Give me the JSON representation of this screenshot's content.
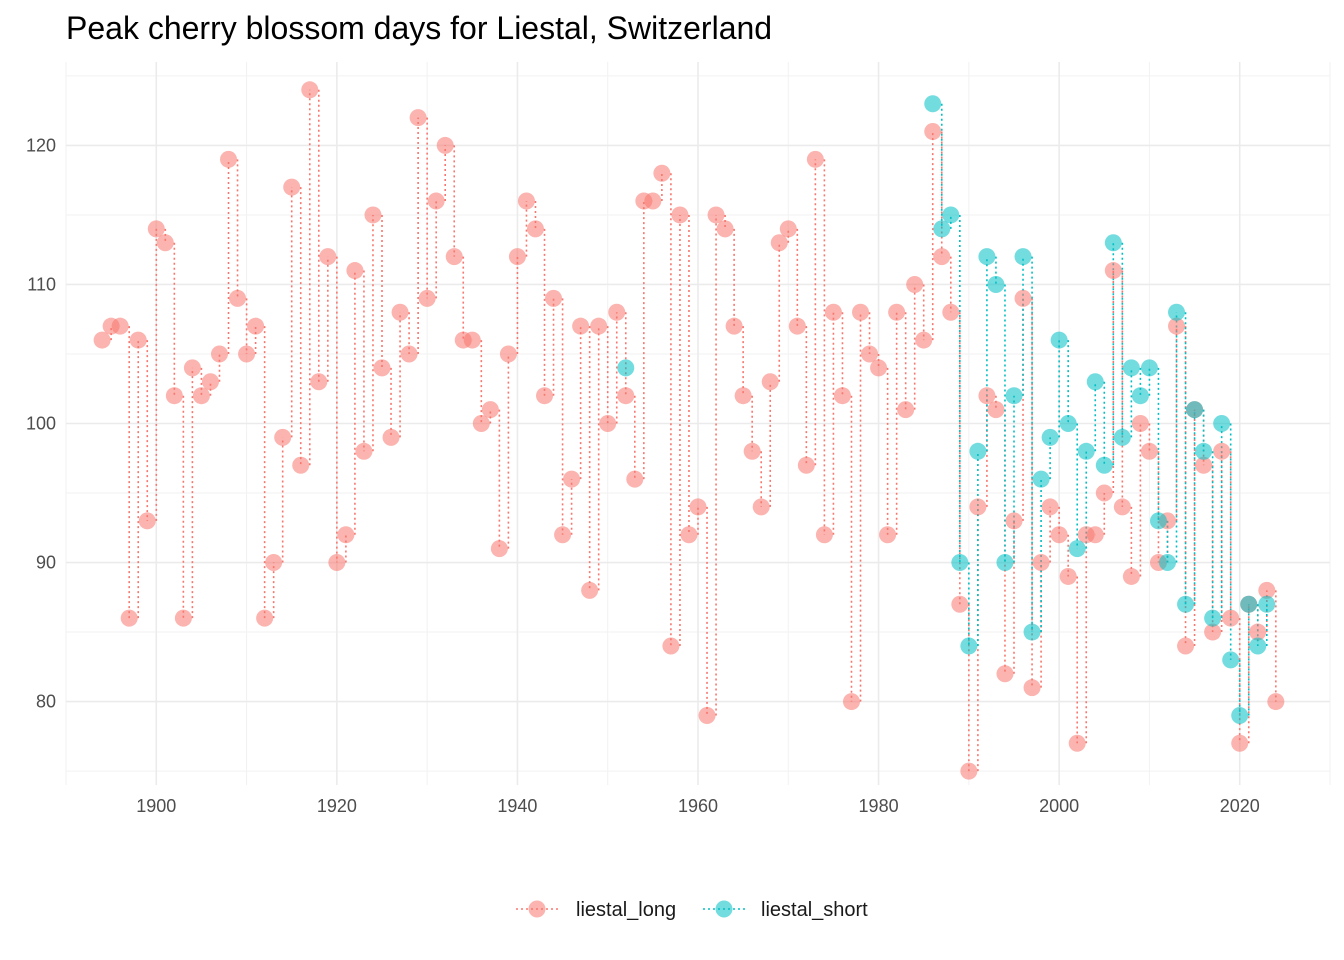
{
  "chart_data": {
    "type": "scatter",
    "title": "Peak cherry blossom days for Liestal, Switzerland",
    "xlabel": "",
    "ylabel": "",
    "xlim": [
      1890,
      2030
    ],
    "ylim": [
      74,
      126
    ],
    "x_ticks": [
      1900,
      1920,
      1940,
      1960,
      1980,
      2000,
      2020
    ],
    "y_ticks": [
      80,
      90,
      100,
      110,
      120
    ],
    "grid": true,
    "legend_position": "bottom",
    "series": [
      {
        "name": "liestal_long",
        "color": "#F8766D",
        "x": [
          1894,
          1895,
          1896,
          1897,
          1898,
          1899,
          1900,
          1901,
          1902,
          1903,
          1904,
          1905,
          1906,
          1907,
          1908,
          1909,
          1910,
          1911,
          1912,
          1913,
          1914,
          1915,
          1916,
          1917,
          1918,
          1919,
          1920,
          1921,
          1922,
          1923,
          1924,
          1925,
          1926,
          1927,
          1928,
          1929,
          1930,
          1931,
          1932,
          1933,
          1934,
          1935,
          1936,
          1937,
          1938,
          1939,
          1940,
          1941,
          1942,
          1943,
          1944,
          1945,
          1946,
          1947,
          1948,
          1949,
          1950,
          1951,
          1952,
          1953,
          1954,
          1955,
          1956,
          1957,
          1958,
          1959,
          1960,
          1961,
          1962,
          1963,
          1964,
          1965,
          1966,
          1967,
          1968,
          1969,
          1970,
          1971,
          1972,
          1973,
          1974,
          1975,
          1976,
          1977,
          1978,
          1979,
          1980,
          1981,
          1982,
          1983,
          1984,
          1985,
          1986,
          1987,
          1988,
          1989,
          1990,
          1991,
          1992,
          1993,
          1994,
          1995,
          1996,
          1997,
          1998,
          1999,
          2000,
          2001,
          2002,
          2003,
          2004,
          2005,
          2006,
          2007,
          2008,
          2009,
          2010,
          2011,
          2012,
          2013,
          2014,
          2015,
          2016,
          2017,
          2018,
          2019,
          2020,
          2021,
          2022,
          2023,
          2024
        ],
        "y": [
          106,
          107,
          107,
          86,
          106,
          93,
          114,
          113,
          102,
          86,
          104,
          102,
          103,
          105,
          119,
          109,
          105,
          107,
          86,
          90,
          99,
          117,
          97,
          124,
          103,
          112,
          90,
          92,
          111,
          98,
          115,
          104,
          99,
          108,
          105,
          122,
          109,
          116,
          120,
          112,
          106,
          106,
          100,
          101,
          91,
          105,
          112,
          116,
          114,
          102,
          109,
          92,
          96,
          107,
          88,
          107,
          100,
          108,
          102,
          96,
          116,
          116,
          118,
          84,
          115,
          92,
          94,
          79,
          115,
          114,
          107,
          102,
          98,
          94,
          103,
          113,
          114,
          107,
          97,
          119,
          92,
          108,
          102,
          80,
          108,
          105,
          104,
          92,
          108,
          101,
          110,
          106,
          121,
          112,
          108,
          87,
          75,
          94,
          102,
          101,
          82,
          93,
          109,
          81,
          90,
          94,
          92,
          89,
          77,
          92,
          92,
          95,
          111,
          94,
          89,
          100,
          98,
          90,
          93,
          107,
          84,
          101,
          97,
          85,
          98,
          86,
          77,
          87,
          85,
          88,
          80
        ]
      },
      {
        "name": "liestal_short",
        "color": "#00BFC4",
        "x": [
          1952,
          1986,
          1987,
          1988,
          1989,
          1990,
          1991,
          1992,
          1993,
          1994,
          1995,
          1996,
          1997,
          1998,
          1999,
          2000,
          2001,
          2002,
          2003,
          2004,
          2005,
          2006,
          2007,
          2008,
          2009,
          2010,
          2011,
          2012,
          2013,
          2014,
          2015,
          2016,
          2017,
          2018,
          2019,
          2020,
          2021,
          2022,
          2023
        ],
        "y": [
          104,
          123,
          114,
          115,
          90,
          84,
          98,
          112,
          110,
          90,
          102,
          112,
          85,
          96,
          99,
          106,
          100,
          91,
          98,
          103,
          97,
          113,
          99,
          104,
          102,
          104,
          93,
          90,
          108,
          87,
          101,
          98,
          86,
          100,
          83,
          79,
          87,
          84,
          87
        ]
      }
    ]
  }
}
